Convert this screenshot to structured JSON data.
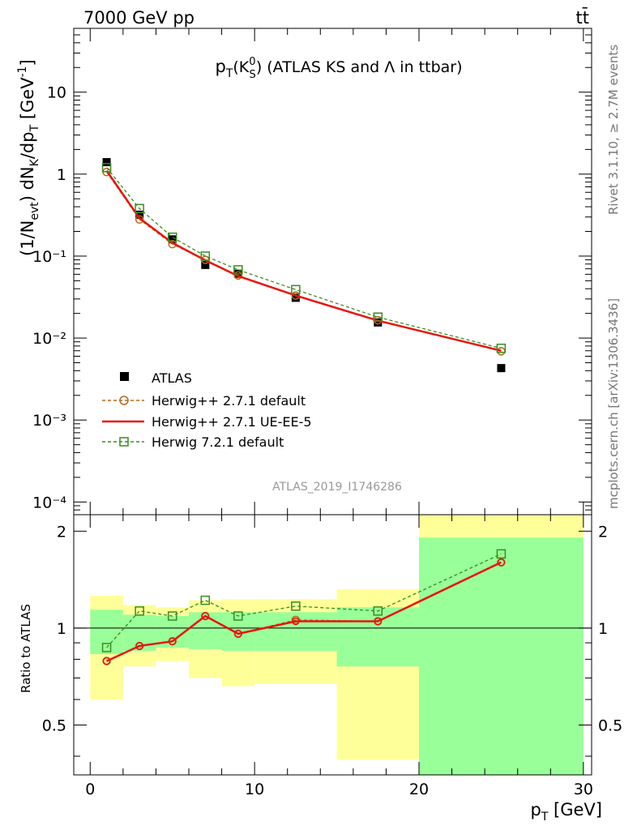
{
  "header": {
    "left": "7000 GeV pp",
    "right": "tt̄"
  },
  "side_labels": {
    "rivet": "Rivet 3.1.10, ≥ 2.7M events",
    "mcplots": "mcplots.cern.ch [arXiv:1306.3436]"
  },
  "watermark": "ATLAS_2019_I1746286",
  "colors": {
    "atlas": "#000000",
    "herwig271_default": "#b8691a",
    "herwig271_ueee5": "#e8140e",
    "herwig721": "#3a8c1f",
    "band_inner": "#99ff99",
    "band_outer": "#ffff99"
  },
  "chart_data": [
    {
      "type": "scatter",
      "panel": "main",
      "title": "p_T(K_S^0) (ATLAS KS and Λ in ttbar)",
      "ylabel": "(1/N_evt) dN_K/dp_T [GeV^-1]",
      "yscale": "log",
      "ylim": [
        7e-05,
        60
      ],
      "xlim": [
        -1,
        30.5
      ],
      "y_ticks": [
        {
          "value": 10,
          "label": "10"
        },
        {
          "value": 1,
          "label": "1"
        },
        {
          "value": 0.1,
          "label": "10⁻¹"
        },
        {
          "value": 0.01,
          "label": "10⁻²"
        },
        {
          "value": 0.001,
          "label": "10⁻³"
        },
        {
          "value": 0.0001,
          "label": "10⁻⁴"
        }
      ],
      "x": [
        1,
        3,
        5,
        7,
        9,
        12.5,
        17.5,
        25
      ],
      "series": [
        {
          "name": "ATLAS",
          "key": "atlas",
          "style": "marker",
          "values": [
            1.4,
            0.32,
            0.16,
            0.078,
            0.061,
            0.031,
            0.0155,
            0.0043
          ]
        },
        {
          "name": "Herwig++ 2.7.1 default",
          "key": "herwig271_default",
          "style": "dashed-circle",
          "values": [
            1.06,
            0.28,
            0.14,
            0.09,
            0.058,
            0.033,
            0.0165,
            0.0069
          ]
        },
        {
          "name": "Herwig++ 2.7.1 UE-EE-5",
          "key": "herwig271_ueee5",
          "style": "solid",
          "values": [
            1.1,
            0.29,
            0.145,
            0.089,
            0.057,
            0.033,
            0.0163,
            0.007
          ]
        },
        {
          "name": "Herwig 7.2.1 default",
          "key": "herwig721",
          "style": "dashed-square",
          "values": [
            1.2,
            0.38,
            0.17,
            0.1,
            0.068,
            0.039,
            0.018,
            0.0075
          ]
        }
      ]
    },
    {
      "type": "line",
      "panel": "ratio",
      "ylabel": "Ratio to ATLAS",
      "xlabel": "p_T [GeV]",
      "ylim": [
        0.35,
        2.25
      ],
      "xlim": [
        -1,
        30.5
      ],
      "x_ticks": [
        0,
        10,
        20,
        30
      ],
      "y_ticks": [
        0.5,
        1,
        2
      ],
      "reference": 1,
      "bins": [
        {
          "lo": 0,
          "hi": 2,
          "inner": [
            0.83,
            1.14
          ],
          "outer": [
            0.6,
            1.26
          ]
        },
        {
          "lo": 2,
          "hi": 4,
          "inner": [
            0.85,
            1.1
          ],
          "outer": [
            0.76,
            1.18
          ]
        },
        {
          "lo": 4,
          "hi": 6,
          "inner": [
            0.87,
            1.09
          ],
          "outer": [
            0.79,
            1.16
          ]
        },
        {
          "lo": 6,
          "hi": 8,
          "inner": [
            0.86,
            1.12
          ],
          "outer": [
            0.7,
            1.22
          ]
        },
        {
          "lo": 8,
          "hi": 10,
          "inner": [
            0.85,
            1.12
          ],
          "outer": [
            0.66,
            1.23
          ]
        },
        {
          "lo": 10,
          "hi": 15,
          "inner": [
            0.85,
            1.12
          ],
          "outer": [
            0.67,
            1.23
          ]
        },
        {
          "lo": 15,
          "hi": 20,
          "inner": [
            0.76,
            1.16
          ],
          "outer": [
            0.39,
            1.32
          ]
        },
        {
          "lo": 20,
          "hi": 30,
          "inner": [
            0.35,
            1.91
          ],
          "outer": [
            0.35,
            2.25
          ]
        }
      ],
      "x": [
        1,
        3,
        5,
        7,
        9,
        12.5,
        17.5,
        25
      ],
      "series": [
        {
          "name": "Herwig++ 2.7.1 default",
          "key": "herwig271_default",
          "style": "dashed-circle",
          "values": [
            0.79,
            0.88,
            0.91,
            1.09,
            0.96,
            1.06,
            1.05,
            1.6
          ]
        },
        {
          "name": "Herwig++ 2.7.1 UE-EE-5",
          "key": "herwig271_ueee5",
          "style": "solid",
          "values": [
            0.79,
            0.88,
            0.91,
            1.09,
            0.96,
            1.05,
            1.05,
            1.6
          ]
        },
        {
          "name": "Herwig 7.2.1 default",
          "key": "herwig721",
          "style": "dashed-square",
          "values": [
            0.87,
            1.13,
            1.09,
            1.22,
            1.09,
            1.17,
            1.13,
            1.7
          ]
        }
      ]
    }
  ]
}
